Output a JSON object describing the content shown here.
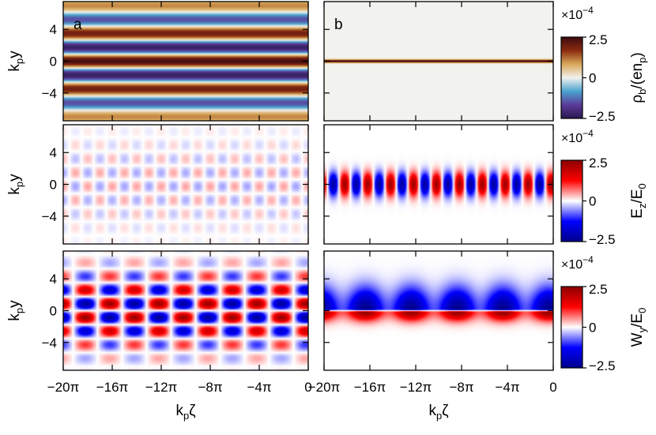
{
  "chart_data": {
    "type": "heatmap",
    "x_axis": {
      "label_main": "k",
      "label_sub": "p",
      "label_tail": "ζ",
      "range": [
        -20,
        0
      ],
      "ticks": [
        -20,
        -16,
        -12,
        -8,
        -4,
        0
      ],
      "tick_labels": [
        "−20π",
        "−16π",
        "−12π",
        "−8π",
        "−4π",
        "0"
      ],
      "tick_labels_right": [
        "−20π",
        "−16π",
        "−12π",
        "−8π",
        "−4π",
        "0"
      ]
    },
    "y_axis": {
      "label_main": "k",
      "label_sub": "p",
      "label_tail": "y",
      "range": [
        -7.5,
        7.5
      ],
      "ticks": [
        4,
        0,
        -4
      ],
      "tick_labels": [
        "4",
        "0",
        "−4"
      ]
    },
    "columns": [
      {
        "letter": "a"
      },
      {
        "letter": "b"
      }
    ],
    "rows": [
      {
        "quantity": "rho_b",
        "colormap": "vik-like diverging (dark blue – white – dark brown)",
        "colors": [
          "#2a1850",
          "#5b3a9a",
          "#4aa3cf",
          "#f2f2ee",
          "#d9a85a",
          "#8a2c10",
          "#3c0a10"
        ],
        "colorbar": {
          "scale": "×10",
          "exp": "−4",
          "label_parts": [
            "ρ",
            "b",
            "/(en",
            "p",
            ")"
          ],
          "ticks": [
            "2.5",
            "0",
            "−2.5"
          ],
          "range": [
            -2.5,
            2.5
          ]
        }
      },
      {
        "quantity": "E_z",
        "colormap": "blue–white–red",
        "colors": [
          "#00008b",
          "#0000ff",
          "#ffffff",
          "#ff0000",
          "#8b0000"
        ],
        "colorbar": {
          "scale": "×10",
          "exp": "−4",
          "label_parts": [
            "E",
            "z",
            "/E",
            "0",
            ""
          ],
          "ticks": [
            "2.5",
            "0",
            "−2.5"
          ],
          "range": [
            -2.5,
            2.5
          ]
        }
      },
      {
        "quantity": "W_y",
        "colormap": "blue–white–red",
        "colors": [
          "#00008b",
          "#0000ff",
          "#ffffff",
          "#ff0000",
          "#8b0000"
        ],
        "colorbar": {
          "scale": "×10",
          "exp": "−4",
          "label_parts": [
            "W",
            "y",
            "/E",
            "0",
            ""
          ],
          "ticks": [
            "2.5",
            "0",
            "−2.5"
          ],
          "range": [
            -2.5,
            2.5
          ]
        }
      }
    ]
  }
}
